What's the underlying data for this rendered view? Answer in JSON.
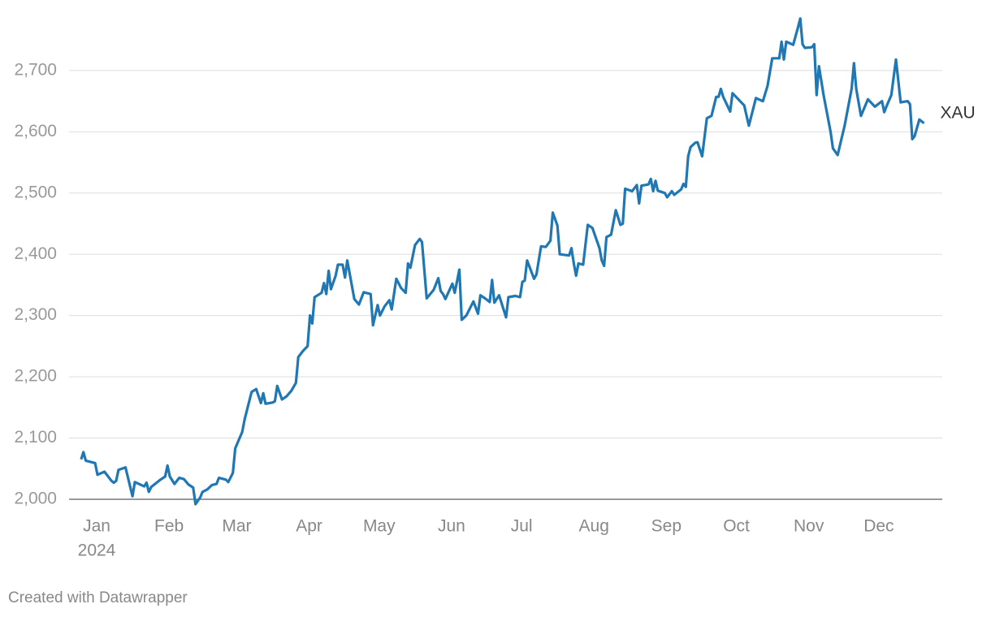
{
  "chart_data": {
    "type": "line",
    "year_label": "2024",
    "source": "Created with Datawrapper",
    "xlim": [
      0,
      366
    ],
    "xticks": [
      {
        "value": 0,
        "label": "Jan"
      },
      {
        "value": 31,
        "label": "Feb"
      },
      {
        "value": 60,
        "label": "Mar"
      },
      {
        "value": 91,
        "label": "Apr"
      },
      {
        "value": 121,
        "label": "May"
      },
      {
        "value": 152,
        "label": "Jun"
      },
      {
        "value": 182,
        "label": "Jul"
      },
      {
        "value": 213,
        "label": "Aug"
      },
      {
        "value": 244,
        "label": "Sep"
      },
      {
        "value": 274,
        "label": "Oct"
      },
      {
        "value": 305,
        "label": "Nov"
      },
      {
        "value": 335,
        "label": "Dec"
      }
    ],
    "ylim": [
      1990,
      2790
    ],
    "yticks": [
      {
        "value": 2000,
        "label": "2,000"
      },
      {
        "value": 2100,
        "label": "2,100"
      },
      {
        "value": 2200,
        "label": "2,200"
      },
      {
        "value": 2300,
        "label": "2,300"
      },
      {
        "value": 2400,
        "label": "2,400"
      },
      {
        "value": 2500,
        "label": "2,500"
      },
      {
        "value": 2600,
        "label": "2,600"
      },
      {
        "value": 2700,
        "label": "2,700"
      }
    ],
    "grid": true,
    "x": [
      1,
      2,
      3,
      7,
      8,
      11,
      14,
      15,
      16,
      17,
      20,
      23,
      24,
      28,
      29,
      30,
      31,
      35,
      37,
      38,
      39,
      41,
      43,
      45,
      47,
      49,
      50,
      52,
      53,
      55,
      57,
      59,
      60,
      63,
      64,
      66,
      67,
      70,
      71,
      74,
      76,
      78,
      79,
      80,
      83,
      84,
      85,
      87,
      89,
      91,
      93,
      94,
      96,
      98,
      99,
      100,
      101,
      104,
      105,
      106,
      107,
      108,
      110,
      111,
      113,
      114,
      115,
      118,
      120,
      122,
      125,
      126,
      128,
      129,
      131,
      133,
      134,
      136,
      138,
      140,
      141,
      142,
      144,
      146,
      147,
      149,
      152,
      154,
      155,
      156,
      157,
      160,
      161,
      163,
      164,
      166,
      169,
      171,
      172,
      174,
      176,
      177,
      178,
      180,
      183,
      184,
      187,
      189,
      190,
      191,
      192,
      195,
      196,
      198,
      200,
      202,
      203,
      205,
      206,
      210,
      211,
      212,
      213,
      214,
      216,
      218,
      220,
      223,
      224,
      225,
      226,
      228,
      230,
      232,
      233,
      234,
      237,
      239,
      240,
      241,
      244,
      245,
      246,
      247,
      248,
      251,
      252,
      254,
      255,
      258,
      259,
      260,
      261,
      262,
      264,
      265,
      267,
      269,
      271,
      273,
      274,
      275,
      276,
      279,
      280,
      285,
      287,
      290,
      293,
      295,
      297,
      300,
      301,
      302,
      303,
      306,
      308,
      309,
      310,
      311,
      314,
      315,
      316,
      317,
      319,
      322,
      323,
      325,
      328,
      331,
      332,
      333,
      335,
      338,
      341,
      344,
      345,
      346,
      348,
      350,
      352,
      355,
      356,
      357,
      358,
      360,
      362
    ],
    "series": [
      {
        "name": "XAU",
        "color": "#1f77b4",
        "values": [
          2065,
          2077,
          2063,
          2059,
          2040,
          2045,
          2030,
          2027,
          2030,
          2048,
          2052,
          2005,
          2028,
          2021,
          2027,
          2012,
          2020,
          2032,
          2037,
          2055,
          2037,
          2025,
          2035,
          2033,
          2024,
          2019,
          1992,
          2003,
          2012,
          2016,
          2023,
          2025,
          2035,
          2032,
          2028,
          2043,
          2083,
          2110,
          2130,
          2175,
          2180,
          2157,
          2173,
          2156,
          2158,
          2160,
          2185,
          2163,
          2168,
          2177,
          2190,
          2232,
          2242,
          2250,
          2300,
          2287,
          2330,
          2337,
          2353,
          2335,
          2373,
          2343,
          2365,
          2383,
          2383,
          2362,
          2390,
          2327,
          2318,
          2338,
          2335,
          2284,
          2317,
          2300,
          2315,
          2325,
          2310,
          2360,
          2345,
          2337,
          2385,
          2378,
          2415,
          2425,
          2420,
          2328,
          2342,
          2361,
          2340,
          2335,
          2327,
          2352,
          2337,
          2375,
          2293,
          2300,
          2323,
          2303,
          2333,
          2328,
          2322,
          2358,
          2321,
          2333,
          2297,
          2330,
          2332,
          2330,
          2355,
          2357,
          2390,
          2360,
          2367,
          2413,
          2412,
          2422,
          2468,
          2447,
          2400,
          2398,
          2410,
          2385,
          2365,
          2385,
          2383,
          2448,
          2443,
          2410,
          2390,
          2381,
          2428,
          2432,
          2472,
          2448,
          2450,
          2507,
          2503,
          2513,
          2483,
          2512,
          2514,
          2523,
          2503,
          2520,
          2504,
          2500,
          2493,
          2503,
          2497,
          2506,
          2515,
          2510,
          2560,
          2575,
          2582,
          2583,
          2560,
          2622,
          2626,
          2657,
          2657,
          2670,
          2657,
          2633,
          2663,
          2643,
          2610,
          2655,
          2650,
          2675,
          2720,
          2720,
          2747,
          2718,
          2747,
          2742,
          2770,
          2785,
          2743,
          2737,
          2738,
          2743,
          2660,
          2707,
          2660,
          2600,
          2573,
          2562,
          2610,
          2670,
          2712,
          2670,
          2626,
          2653,
          2641,
          2650,
          2632,
          2642,
          2660,
          2718,
          2648,
          2650,
          2645,
          2588,
          2593,
          2620,
          2614
        ]
      }
    ]
  }
}
